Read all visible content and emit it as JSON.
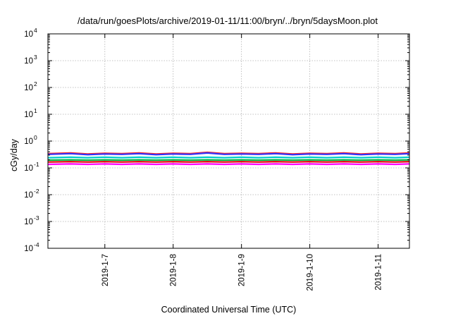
{
  "chart_data": {
    "type": "line",
    "title": "/data/run/goesPlots/archive/2019-01-11/11:00/bryn/../bryn/5daysMoon.plot",
    "xlabel": "Coordinated Universal Time (UTC)",
    "ylabel": "cGy/day",
    "yscale": "log",
    "ylim": [
      0.0001,
      10000
    ],
    "xlim": [
      "2019-01-06T04:00",
      "2019-01-11T11:00"
    ],
    "grid": true,
    "legend": "none",
    "y_ticks": [
      {
        "value": 0.0001,
        "base": "10",
        "exp": "-4"
      },
      {
        "value": 0.001,
        "base": "10",
        "exp": "-3"
      },
      {
        "value": 0.01,
        "base": "10",
        "exp": "-2"
      },
      {
        "value": 0.1,
        "base": "10",
        "exp": "-1"
      },
      {
        "value": 1,
        "base": "10",
        "exp": "0"
      },
      {
        "value": 10,
        "base": "10",
        "exp": "1"
      },
      {
        "value": 100,
        "base": "10",
        "exp": "2"
      },
      {
        "value": 1000,
        "base": "10",
        "exp": "3"
      },
      {
        "value": 10000,
        "base": "10",
        "exp": "4"
      }
    ],
    "x_ticks": [
      {
        "value": "2019-01-07T00:00",
        "label": "2019-1-7"
      },
      {
        "value": "2019-01-08T00:00",
        "label": "2019-1-8"
      },
      {
        "value": "2019-01-09T00:00",
        "label": "2019-1-9"
      },
      {
        "value": "2019-01-10T00:00",
        "label": "2019-1-10"
      },
      {
        "value": "2019-01-11T00:00",
        "label": "2019-1-11"
      }
    ],
    "series": [
      {
        "color": "#ff00ff",
        "values": [
          [
            "2019-01-06T04:00",
            0.135
          ],
          [
            "2019-01-06T12:00",
            0.14
          ],
          [
            "2019-01-06T18:00",
            0.135
          ],
          [
            "2019-01-07T00:00",
            0.14
          ],
          [
            "2019-01-07T06:00",
            0.135
          ],
          [
            "2019-01-07T12:00",
            0.14
          ],
          [
            "2019-01-07T18:00",
            0.135
          ],
          [
            "2019-01-08T00:00",
            0.14
          ],
          [
            "2019-01-08T06:00",
            0.135
          ],
          [
            "2019-01-08T12:00",
            0.14
          ],
          [
            "2019-01-08T18:00",
            0.135
          ],
          [
            "2019-01-09T00:00",
            0.14
          ],
          [
            "2019-01-09T06:00",
            0.135
          ],
          [
            "2019-01-09T12:00",
            0.14
          ],
          [
            "2019-01-09T18:00",
            0.135
          ],
          [
            "2019-01-10T00:00",
            0.14
          ],
          [
            "2019-01-10T06:00",
            0.135
          ],
          [
            "2019-01-10T12:00",
            0.14
          ],
          [
            "2019-01-10T18:00",
            0.135
          ],
          [
            "2019-01-11T00:00",
            0.14
          ],
          [
            "2019-01-11T06:00",
            0.135
          ],
          [
            "2019-01-11T11:00",
            0.14
          ]
        ]
      },
      {
        "color": "#dd0000",
        "values": [
          [
            "2019-01-06T04:00",
            0.165
          ],
          [
            "2019-01-06T12:00",
            0.17
          ],
          [
            "2019-01-06T18:00",
            0.165
          ],
          [
            "2019-01-07T00:00",
            0.17
          ],
          [
            "2019-01-07T06:00",
            0.165
          ],
          [
            "2019-01-07T12:00",
            0.17
          ],
          [
            "2019-01-07T18:00",
            0.165
          ],
          [
            "2019-01-08T00:00",
            0.17
          ],
          [
            "2019-01-08T06:00",
            0.165
          ],
          [
            "2019-01-08T12:00",
            0.17
          ],
          [
            "2019-01-08T18:00",
            0.165
          ],
          [
            "2019-01-09T00:00",
            0.17
          ],
          [
            "2019-01-09T06:00",
            0.165
          ],
          [
            "2019-01-09T12:00",
            0.17
          ],
          [
            "2019-01-09T18:00",
            0.165
          ],
          [
            "2019-01-10T00:00",
            0.17
          ],
          [
            "2019-01-10T06:00",
            0.165
          ],
          [
            "2019-01-10T12:00",
            0.17
          ],
          [
            "2019-01-10T18:00",
            0.165
          ],
          [
            "2019-01-11T00:00",
            0.17
          ],
          [
            "2019-01-11T06:00",
            0.165
          ],
          [
            "2019-01-11T11:00",
            0.17
          ]
        ]
      },
      {
        "color": "#00bb44",
        "values": [
          [
            "2019-01-06T04:00",
            0.195
          ],
          [
            "2019-01-06T12:00",
            0.2
          ],
          [
            "2019-01-06T18:00",
            0.195
          ],
          [
            "2019-01-07T00:00",
            0.2
          ],
          [
            "2019-01-07T06:00",
            0.195
          ],
          [
            "2019-01-07T12:00",
            0.2
          ],
          [
            "2019-01-07T18:00",
            0.195
          ],
          [
            "2019-01-08T00:00",
            0.2
          ],
          [
            "2019-01-08T06:00",
            0.195
          ],
          [
            "2019-01-08T12:00",
            0.2
          ],
          [
            "2019-01-08T18:00",
            0.195
          ],
          [
            "2019-01-09T00:00",
            0.2
          ],
          [
            "2019-01-09T06:00",
            0.195
          ],
          [
            "2019-01-09T12:00",
            0.2
          ],
          [
            "2019-01-09T18:00",
            0.195
          ],
          [
            "2019-01-10T00:00",
            0.2
          ],
          [
            "2019-01-10T06:00",
            0.195
          ],
          [
            "2019-01-10T12:00",
            0.2
          ],
          [
            "2019-01-10T18:00",
            0.195
          ],
          [
            "2019-01-11T00:00",
            0.2
          ],
          [
            "2019-01-11T06:00",
            0.195
          ],
          [
            "2019-01-11T11:00",
            0.2
          ]
        ]
      },
      {
        "color": "#00cccc",
        "values": [
          [
            "2019-01-06T04:00",
            0.24
          ],
          [
            "2019-01-06T12:00",
            0.25
          ],
          [
            "2019-01-06T18:00",
            0.24
          ],
          [
            "2019-01-07T00:00",
            0.25
          ],
          [
            "2019-01-07T06:00",
            0.24
          ],
          [
            "2019-01-07T12:00",
            0.25
          ],
          [
            "2019-01-07T18:00",
            0.24
          ],
          [
            "2019-01-08T00:00",
            0.25
          ],
          [
            "2019-01-08T06:00",
            0.24
          ],
          [
            "2019-01-08T12:00",
            0.25
          ],
          [
            "2019-01-08T18:00",
            0.24
          ],
          [
            "2019-01-09T00:00",
            0.25
          ],
          [
            "2019-01-09T06:00",
            0.24
          ],
          [
            "2019-01-09T12:00",
            0.25
          ],
          [
            "2019-01-09T18:00",
            0.24
          ],
          [
            "2019-01-10T00:00",
            0.25
          ],
          [
            "2019-01-10T06:00",
            0.24
          ],
          [
            "2019-01-10T12:00",
            0.25
          ],
          [
            "2019-01-10T18:00",
            0.24
          ],
          [
            "2019-01-11T00:00",
            0.25
          ],
          [
            "2019-01-11T06:00",
            0.24
          ],
          [
            "2019-01-11T11:00",
            0.25
          ]
        ]
      },
      {
        "color": "#ff2222",
        "values": [
          [
            "2019-01-06T04:00",
            0.34
          ],
          [
            "2019-01-06T12:00",
            0.36
          ],
          [
            "2019-01-06T18:00",
            0.33
          ],
          [
            "2019-01-07T00:00",
            0.35
          ],
          [
            "2019-01-07T06:00",
            0.34
          ],
          [
            "2019-01-07T12:00",
            0.36
          ],
          [
            "2019-01-07T18:00",
            0.33
          ],
          [
            "2019-01-08T00:00",
            0.35
          ],
          [
            "2019-01-08T06:00",
            0.34
          ],
          [
            "2019-01-08T12:00",
            0.38
          ],
          [
            "2019-01-08T18:00",
            0.34
          ],
          [
            "2019-01-09T00:00",
            0.35
          ],
          [
            "2019-01-09T06:00",
            0.34
          ],
          [
            "2019-01-09T12:00",
            0.36
          ],
          [
            "2019-01-09T18:00",
            0.33
          ],
          [
            "2019-01-10T00:00",
            0.35
          ],
          [
            "2019-01-10T06:00",
            0.34
          ],
          [
            "2019-01-10T12:00",
            0.36
          ],
          [
            "2019-01-10T18:00",
            0.33
          ],
          [
            "2019-01-11T00:00",
            0.35
          ],
          [
            "2019-01-11T06:00",
            0.34
          ],
          [
            "2019-01-11T11:00",
            0.36
          ]
        ]
      },
      {
        "color": "#3333ff",
        "values": [
          [
            "2019-01-06T04:00",
            0.32
          ],
          [
            "2019-01-06T12:00",
            0.34
          ],
          [
            "2019-01-06T18:00",
            0.31
          ],
          [
            "2019-01-07T00:00",
            0.33
          ],
          [
            "2019-01-07T06:00",
            0.32
          ],
          [
            "2019-01-07T12:00",
            0.34
          ],
          [
            "2019-01-07T18:00",
            0.31
          ],
          [
            "2019-01-08T00:00",
            0.33
          ],
          [
            "2019-01-08T06:00",
            0.32
          ],
          [
            "2019-01-08T12:00",
            0.36
          ],
          [
            "2019-01-08T18:00",
            0.32
          ],
          [
            "2019-01-09T00:00",
            0.33
          ],
          [
            "2019-01-09T06:00",
            0.32
          ],
          [
            "2019-01-09T12:00",
            0.34
          ],
          [
            "2019-01-09T18:00",
            0.31
          ],
          [
            "2019-01-10T00:00",
            0.33
          ],
          [
            "2019-01-10T06:00",
            0.32
          ],
          [
            "2019-01-10T12:00",
            0.34
          ],
          [
            "2019-01-10T18:00",
            0.31
          ],
          [
            "2019-01-11T00:00",
            0.33
          ],
          [
            "2019-01-11T06:00",
            0.32
          ],
          [
            "2019-01-11T11:00",
            0.34
          ]
        ]
      }
    ]
  }
}
